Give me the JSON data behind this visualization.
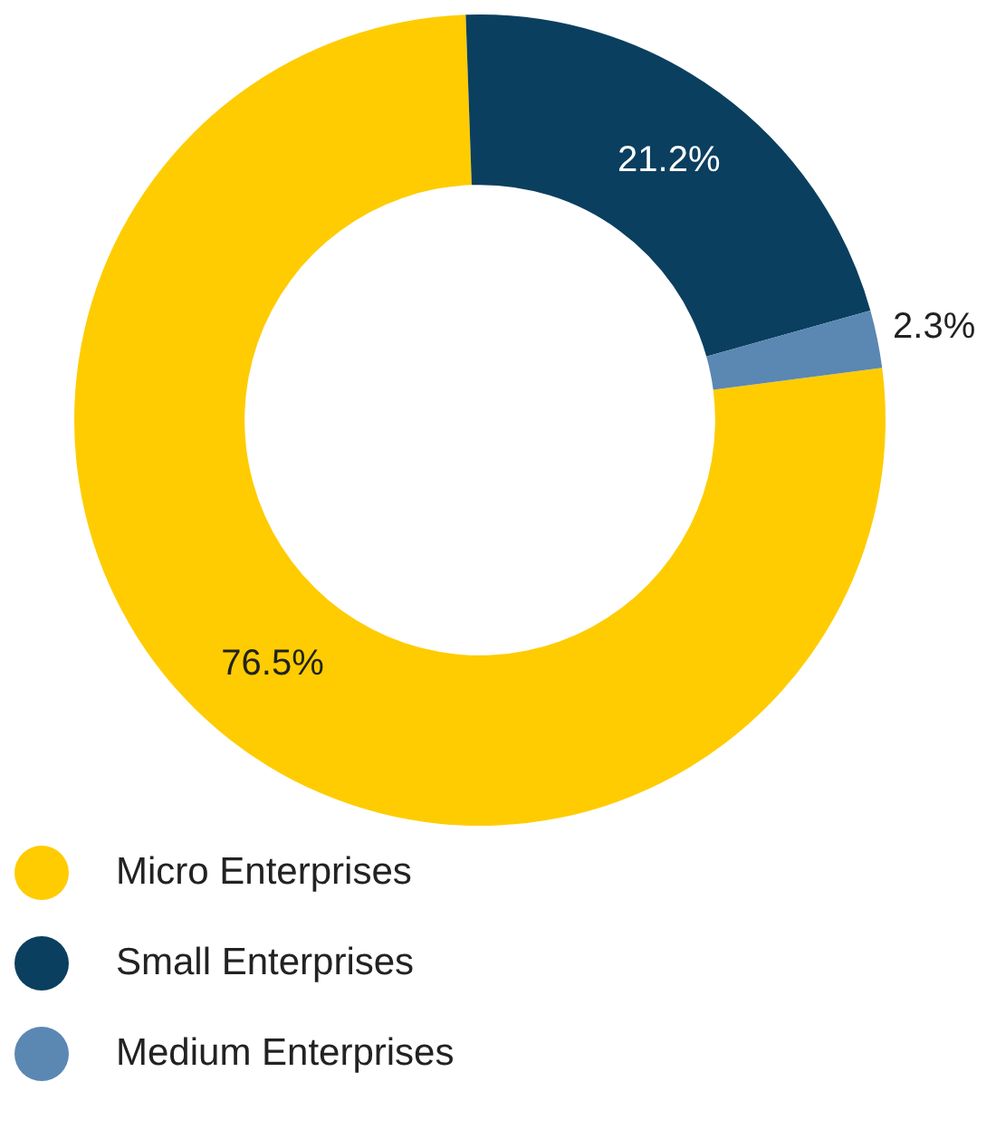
{
  "chart_data": {
    "type": "donut",
    "categories": [
      "Micro Enterprises",
      "Small Enterprises",
      "Medium Enterprises"
    ],
    "values": [
      76.5,
      21.2,
      2.3
    ],
    "colors": [
      "#fecc00",
      "#0b3f5f",
      "#5b87b3"
    ],
    "value_labels": [
      "76.5%",
      "21.2%",
      "2.3%"
    ],
    "legend": "bottom left"
  }
}
